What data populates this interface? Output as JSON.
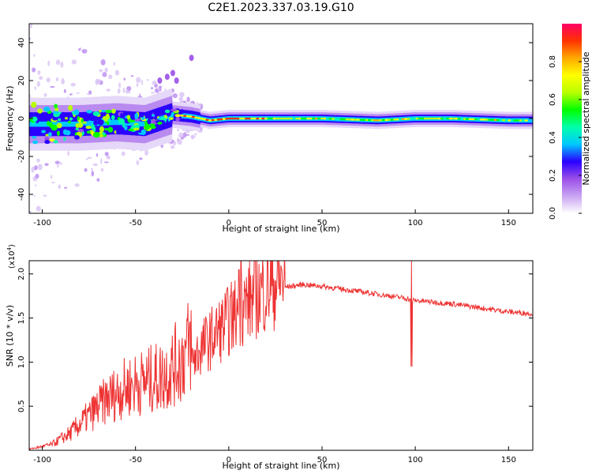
{
  "title": "C2E1.2023.337.03.19.G10",
  "chart_data": [
    {
      "type": "heatmap",
      "xlabel": "Height of straight line (km)",
      "ylabel": "Frequency (Hz)",
      "xlim": [
        -107,
        163
      ],
      "ylim": [
        -50,
        50
      ],
      "xticks": [
        -100,
        -50,
        0,
        50,
        100,
        150
      ],
      "yticks": [
        -40,
        -20,
        0,
        20,
        40
      ],
      "colorbar": {
        "label": "Normalized spectral amplitude",
        "range": [
          0,
          1
        ],
        "ticks": [
          "0.0",
          "0.2",
          "0.4",
          "0.6",
          "0.8"
        ],
        "colors": [
          "#ffffff",
          "#c9a4f2",
          "#9b4fe8",
          "#2a00ff",
          "#00c8ff",
          "#00ffaa",
          "#00ff00",
          "#b8ff00",
          "#ffff00",
          "#ffaa00",
          "#ff3300",
          "#ff0066"
        ]
      },
      "ridge": {
        "x": [
          -100,
          -80,
          -60,
          -45,
          -30,
          -20,
          -10,
          0,
          20,
          50,
          80,
          100,
          120,
          150,
          163
        ],
        "y": [
          -3,
          -3,
          -2,
          -3,
          2,
          1,
          -1,
          0,
          0,
          0,
          -1,
          0,
          0,
          -1,
          -1
        ]
      }
    },
    {
      "type": "line",
      "xlabel": "Height of straight line (km)",
      "ylabel": "SNR (10 * v/v)",
      "yscale_label": "(x10",
      "yscale_exp": "4",
      "yscale_close": ")",
      "xlim": [
        -107,
        163
      ],
      "ylim": [
        0,
        2.15
      ],
      "xticks": [
        -100,
        -50,
        0,
        50,
        100,
        150
      ],
      "yticks": [
        "0.5",
        "1.0",
        "1.5",
        "2.0"
      ],
      "series": [
        {
          "color": "#ee3333",
          "envelope_x": [
            -107,
            -95,
            -85,
            -75,
            -65,
            -55,
            -45,
            -35,
            -25,
            -15,
            -5,
            0,
            5,
            10,
            20,
            30,
            40,
            50,
            60,
            70,
            80,
            90,
            96,
            98,
            100,
            110,
            120,
            130,
            140,
            150,
            163
          ],
          "envelope_y": [
            0.01,
            0.05,
            0.15,
            0.3,
            0.45,
            0.55,
            0.6,
            0.65,
            0.8,
            1.1,
            1.3,
            1.4,
            1.5,
            1.6,
            1.75,
            1.85,
            1.88,
            1.86,
            1.83,
            1.8,
            1.77,
            1.74,
            1.72,
            1.7,
            1.7,
            1.68,
            1.66,
            1.63,
            1.6,
            1.57,
            1.55
          ]
        }
      ]
    }
  ]
}
